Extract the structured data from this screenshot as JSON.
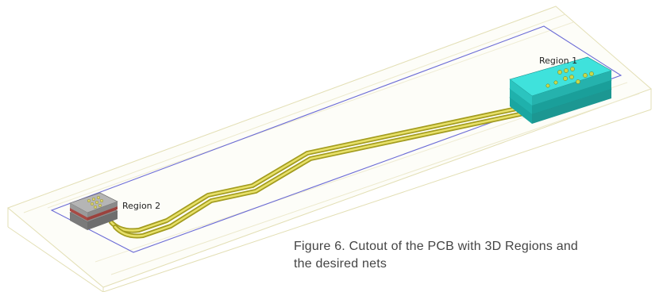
{
  "regions": {
    "region1": {
      "label": "Region 1",
      "color": "#2fd6d0"
    },
    "region2": {
      "label": "Region 2",
      "color": "#9a9a9a"
    }
  },
  "nets": {
    "color": "#c9c23a"
  },
  "cutout": {
    "edge_color": "#e6e2bf",
    "outline_color": "#6b6bd6"
  },
  "caption": {
    "line1": "Figure 6. Cutout of the PCB with 3D Regions and",
    "line2": "the desired nets"
  }
}
